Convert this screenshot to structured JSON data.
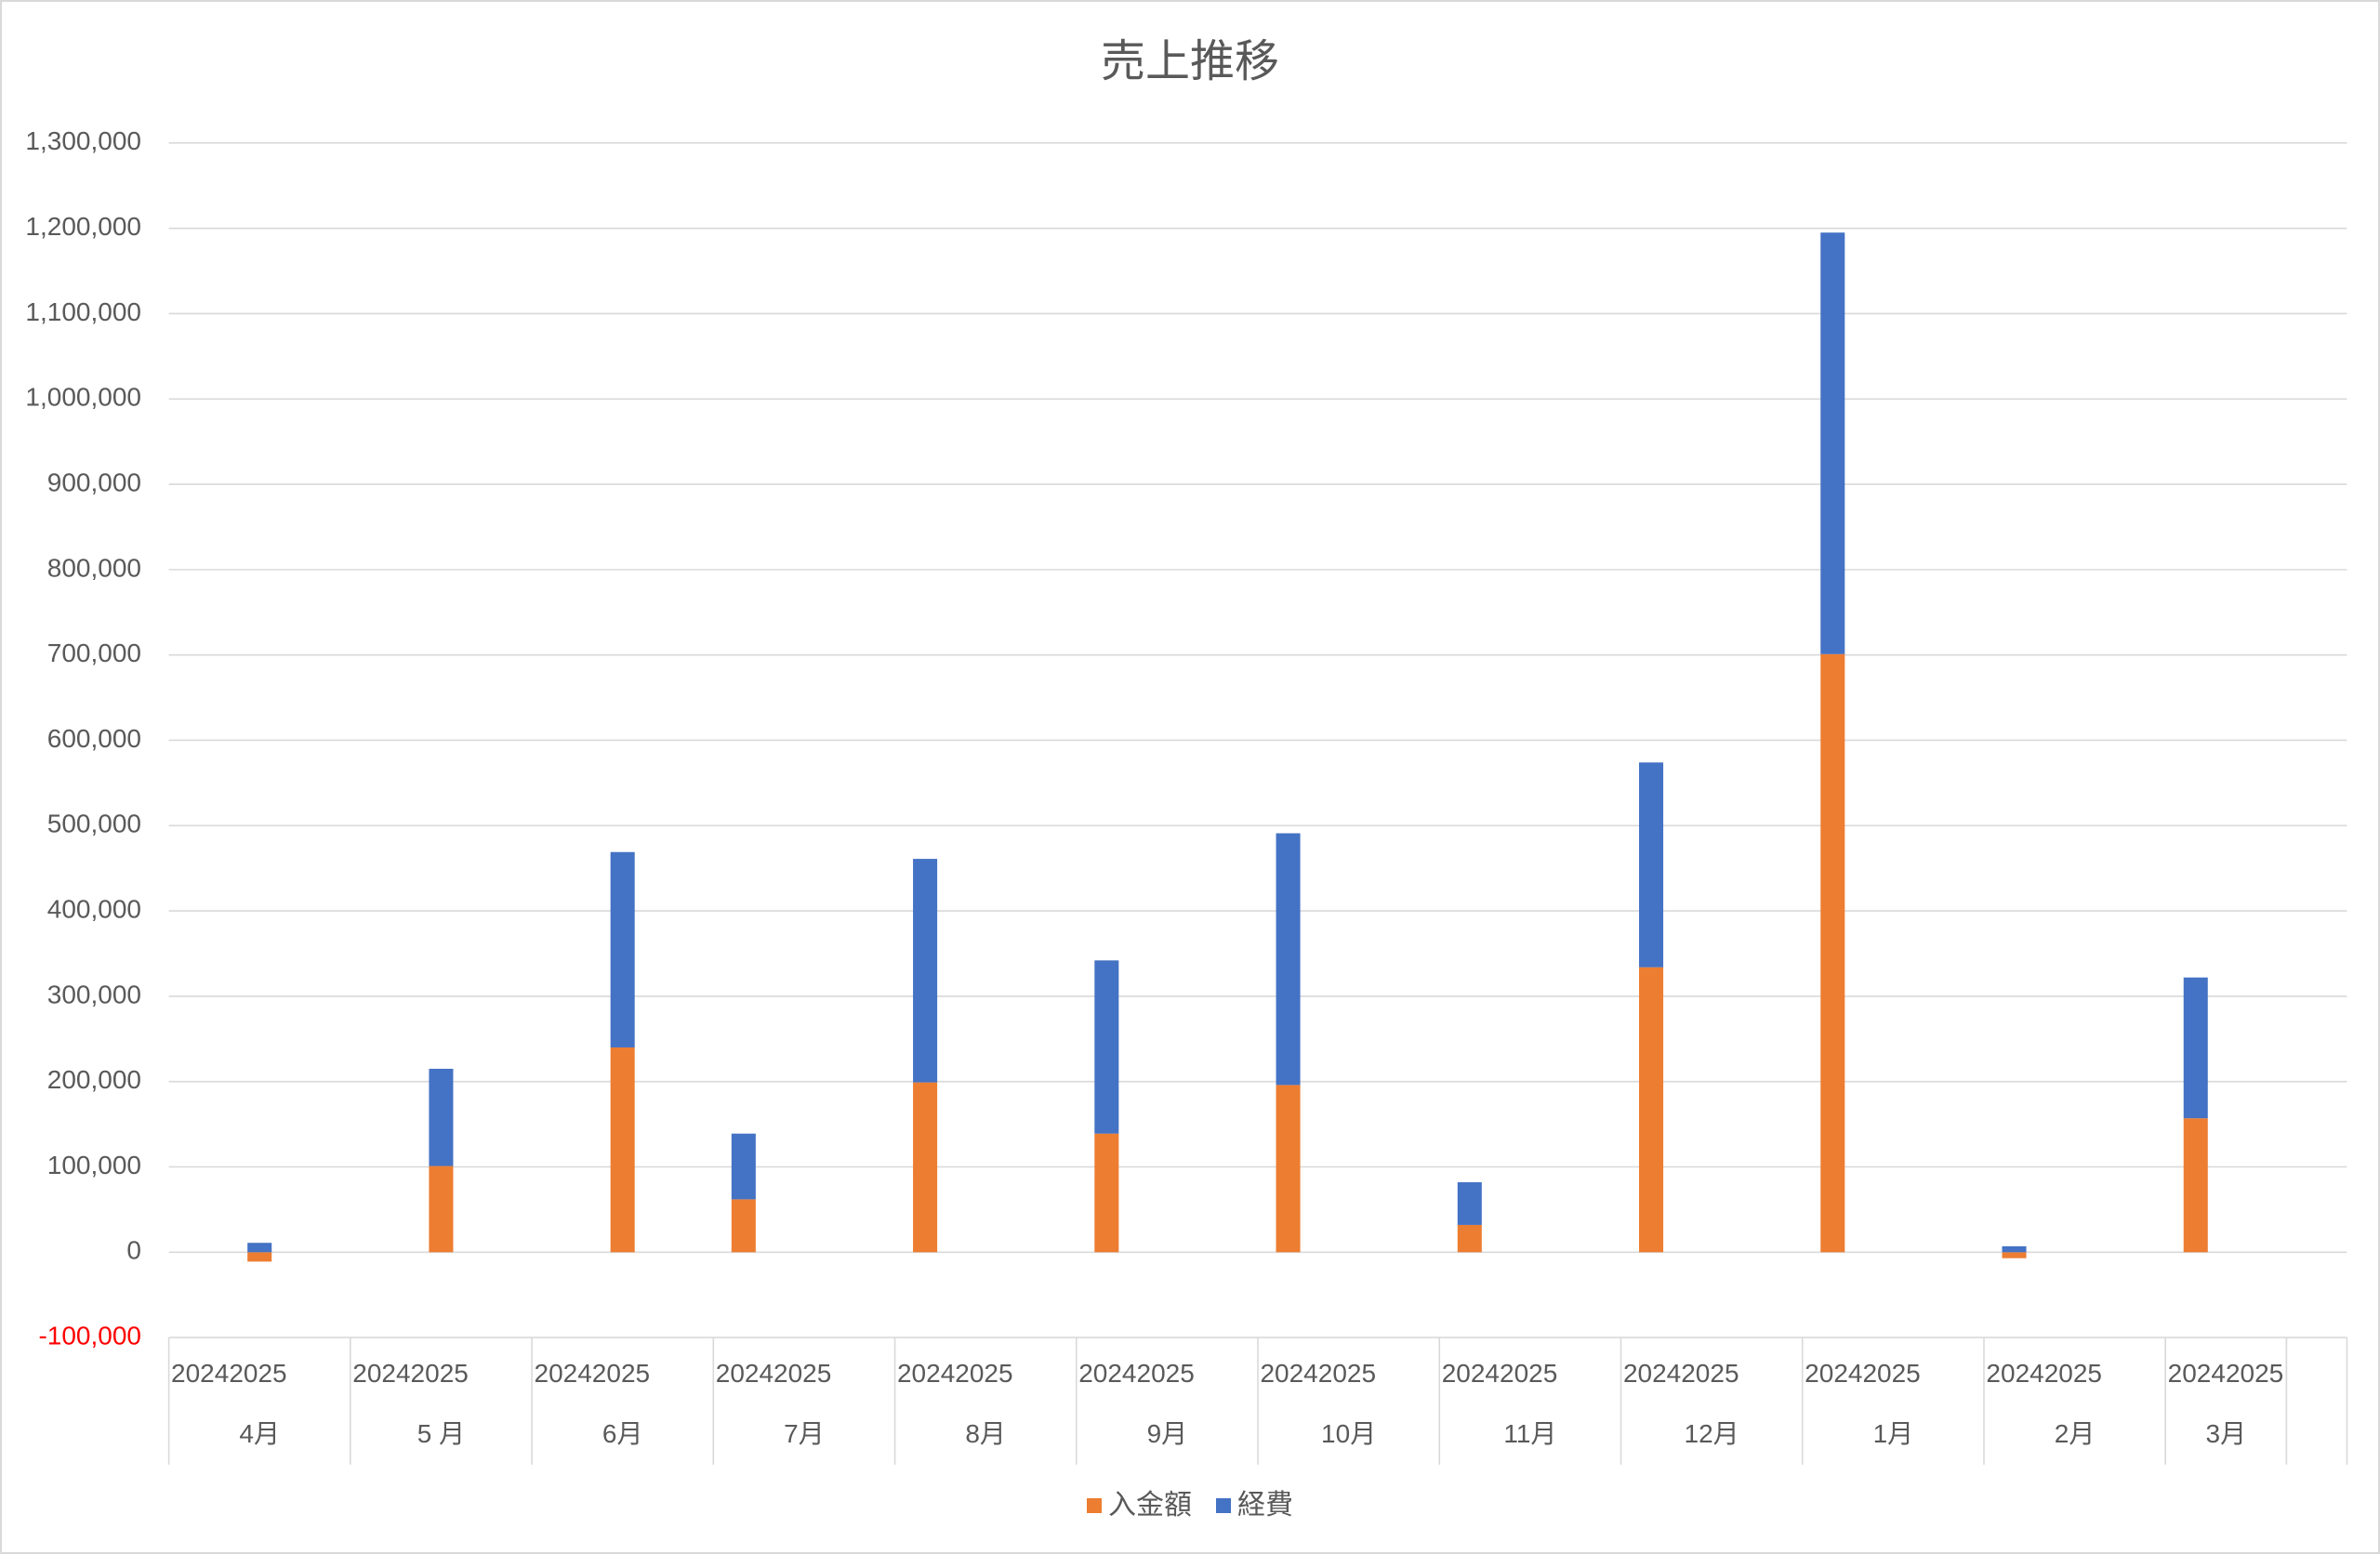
{
  "chart_data": {
    "type": "bar",
    "stacked": true,
    "title": "売上推移",
    "categories": [
      "4月",
      "5 月",
      "6月",
      "7月",
      "8月",
      "9月",
      "10月",
      "11月",
      "12月",
      "1月",
      "2月",
      "3月"
    ],
    "category_group_labels": [
      "20242025",
      "20242025",
      "20242025",
      "20242025",
      "20242025",
      "20242025",
      "20242025",
      "20242025",
      "20242025",
      "20242025",
      "20242025",
      "20242025"
    ],
    "series": [
      {
        "name": "入金額",
        "color": "#ED7D31",
        "values": [
          -11000,
          101000,
          240000,
          62000,
          199000,
          139000,
          196000,
          32000,
          334000,
          701000,
          -7000,
          157000
        ]
      },
      {
        "name": "経費",
        "color": "#4472C4",
        "values": [
          11000,
          114000,
          229000,
          77000,
          262000,
          203000,
          295000,
          50000,
          240000,
          494000,
          7000,
          165000
        ]
      }
    ],
    "y_tick_labels": [
      "1,300,000",
      "1,200,000",
      "1,100,000",
      "1,000,000",
      "900,000",
      "800,000",
      "700,000",
      "600,000",
      "500,000",
      "400,000",
      "300,000",
      "200,000",
      "100,000",
      "0",
      "-100,000"
    ],
    "ylim": [
      -100000,
      1300000
    ],
    "y_step": 100000,
    "grid": true,
    "legend_position": "bottom",
    "text_color": "#595959",
    "negative_tick_color": "#FF0000",
    "gridline_color": "#D9D9D9"
  }
}
